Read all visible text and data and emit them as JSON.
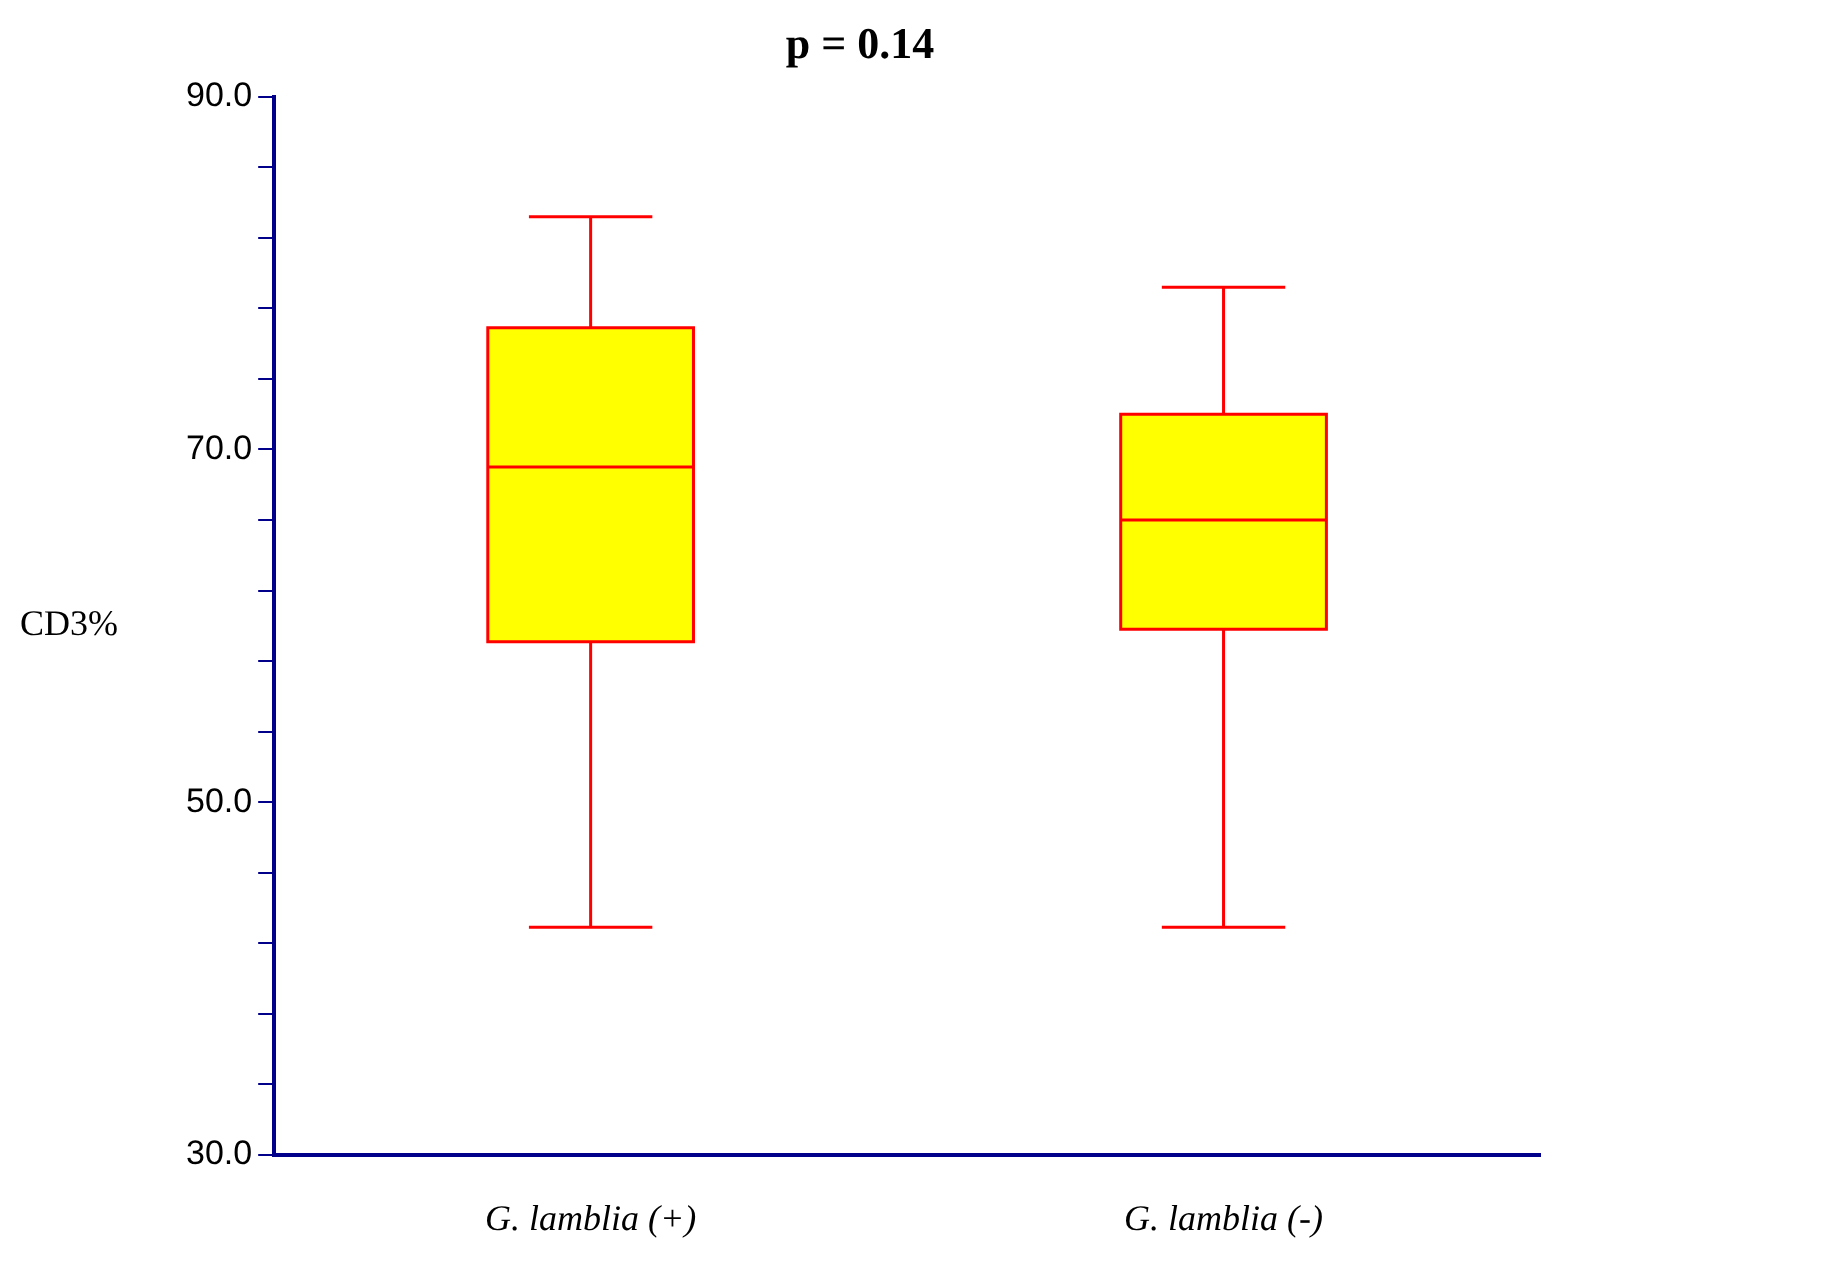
{
  "chart_data": {
    "type": "box",
    "title": "p = 0.14",
    "ylabel": "CD3%",
    "categories": [
      "G. lamblia (+)",
      "G. lamblia (-)"
    ],
    "boxes": [
      {
        "low": 42.9,
        "q1": 59.1,
        "median": 69.0,
        "q3": 76.9,
        "high": 83.2
      },
      {
        "low": 42.9,
        "q1": 59.8,
        "median": 66.0,
        "q3": 72.0,
        "high": 79.2
      }
    ],
    "color": "#ffff00",
    "ylim": [
      30,
      90
    ],
    "yticks": [
      {
        "value": 30,
        "label": "30.0"
      },
      {
        "value": 34,
        "label": null
      },
      {
        "value": 38,
        "label": null
      },
      {
        "value": 42,
        "label": null
      },
      {
        "value": 46,
        "label": null
      },
      {
        "value": 50,
        "label": "50.0"
      },
      {
        "value": 54,
        "label": null
      },
      {
        "value": 58,
        "label": null
      },
      {
        "value": 62,
        "label": null
      },
      {
        "value": 66,
        "label": null
      },
      {
        "value": 70,
        "label": "70.0"
      },
      {
        "value": 74,
        "label": null
      },
      {
        "value": 78,
        "label": null
      },
      {
        "value": 82,
        "label": null
      },
      {
        "value": 86,
        "label": null
      },
      {
        "value": 90,
        "label": "90.0"
      }
    ]
  }
}
